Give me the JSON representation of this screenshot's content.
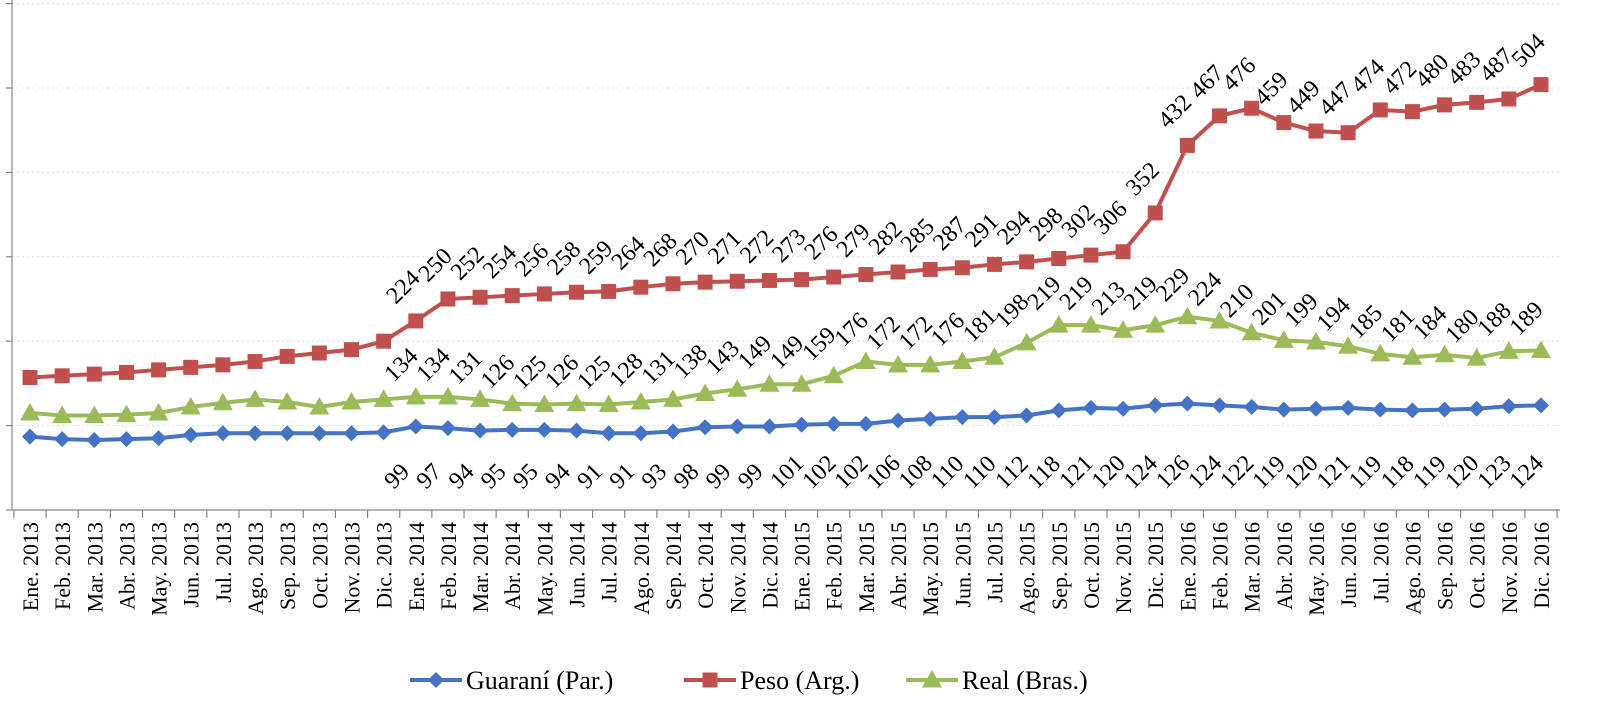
{
  "chart_data": {
    "type": "line",
    "title": "",
    "xlabel": "",
    "ylabel": "",
    "ylim": [
      0,
      600
    ],
    "grid": true,
    "legend_position": "bottom",
    "categories": [
      "Ene. 2013",
      "Feb. 2013",
      "Mar. 2013",
      "Abr. 2013",
      "May. 2013",
      "Jun. 2013",
      "Jul. 2013",
      "Ago. 2013",
      "Sep. 2013",
      "Oct. 2013",
      "Nov. 2013",
      "Dic. 2013",
      "Ene. 2014",
      "Feb. 2014",
      "Mar. 2014",
      "Abr. 2014",
      "May. 2014",
      "Jun. 2014",
      "Jul. 2014",
      "Ago. 2014",
      "Sep. 2014",
      "Oct. 2014",
      "Nov. 2014",
      "Dic. 2014",
      "Ene. 2015",
      "Feb. 2015",
      "Mar. 2015",
      "Abr. 2015",
      "May. 2015",
      "Jun. 2015",
      "Jul. 2015",
      "Ago. 2015",
      "Sep. 2015",
      "Oct. 2015",
      "Nov. 2015",
      "Dic. 2015",
      "Ene. 2016",
      "Feb. 2016",
      "Mar. 2016",
      "Abr. 2016",
      "May. 2016",
      "Jun. 2016",
      "Jul. 2016",
      "Ago. 2016",
      "Sep. 2016",
      "Oct. 2016",
      "Nov. 2016",
      "Dic. 2016"
    ],
    "series": [
      {
        "name": "Guaraní (Par.)",
        "color": "#4472C4",
        "marker": "diamond",
        "values": [
          87,
          84,
          83,
          84,
          85,
          89,
          91,
          91,
          91,
          91,
          91,
          92,
          99,
          97,
          94,
          95,
          95,
          94,
          91,
          91,
          93,
          98,
          99,
          99,
          101,
          102,
          102,
          106,
          108,
          110,
          110,
          112,
          118,
          121,
          120,
          124,
          126,
          124,
          122,
          119,
          120,
          121,
          119,
          118,
          119,
          120,
          123,
          124
        ],
        "labels_start": 12
      },
      {
        "name": "Peso (Arg.)",
        "color": "#C0504D",
        "marker": "square",
        "values": [
          157,
          159,
          161,
          163,
          166,
          169,
          172,
          176,
          182,
          186,
          190,
          200,
          224,
          250,
          252,
          254,
          256,
          258,
          259,
          264,
          268,
          270,
          271,
          272,
          273,
          276,
          279,
          282,
          285,
          287,
          291,
          294,
          298,
          302,
          306,
          352,
          432,
          467,
          476,
          459,
          449,
          447,
          474,
          472,
          480,
          483,
          487,
          504
        ],
        "labels_start": 12
      },
      {
        "name": "Real (Bras.)",
        "color": "#9BBB59",
        "marker": "triangle",
        "values": [
          115,
          112,
          112,
          113,
          115,
          122,
          127,
          131,
          128,
          122,
          128,
          131,
          134,
          134,
          131,
          126,
          125,
          126,
          125,
          128,
          131,
          138,
          143,
          149,
          149,
          159,
          176,
          172,
          172,
          176,
          181,
          198,
          219,
          219,
          213,
          219,
          229,
          224,
          210,
          201,
          199,
          194,
          185,
          181,
          184,
          180,
          188,
          189
        ],
        "labels_start": 12
      }
    ]
  }
}
